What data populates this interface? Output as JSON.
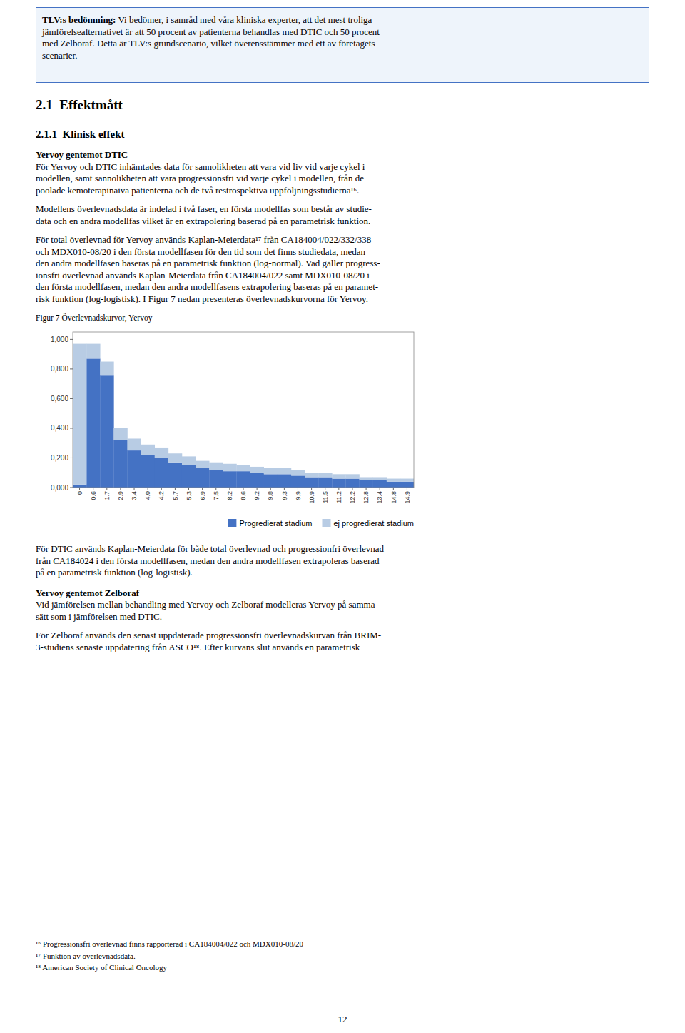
{
  "chart_data": {
    "type": "area",
    "title": "Figur 7 Överlevnadskurvor, Yervoy",
    "stacked": true,
    "line_style": "step",
    "legend": "bottom",
    "categories": [
      "0",
      "0.6",
      "1.7",
      "2.9",
      "3.4",
      "4.0",
      "4.2",
      "5.7",
      "5.3",
      "6.9",
      "7.5",
      "8.2",
      "8.6",
      "9.2",
      "9.8",
      "9.3",
      "9.9",
      "10.9",
      "11.5",
      "11.2",
      "12.2",
      "12.8",
      "13.4",
      "14.8",
      "14.9"
    ],
    "series": [
      {
        "name": "Progredierat stadium",
        "color": "#4472C4",
        "values": [
          0.02,
          0.87,
          0.76,
          0.32,
          0.25,
          0.22,
          0.2,
          0.17,
          0.15,
          0.13,
          0.12,
          0.11,
          0.11,
          0.1,
          0.09,
          0.09,
          0.08,
          0.07,
          0.07,
          0.06,
          0.06,
          0.05,
          0.05,
          0.04,
          0.04
        ]
      },
      {
        "name": "ej progredierat stadium",
        "color": "#B8CCE4",
        "values": [
          0.95,
          0.1,
          0.09,
          0.08,
          0.08,
          0.07,
          0.07,
          0.06,
          0.06,
          0.05,
          0.05,
          0.05,
          0.04,
          0.04,
          0.04,
          0.04,
          0.04,
          0.03,
          0.03,
          0.03,
          0.03,
          0.02,
          0.02,
          0.02,
          0.02
        ]
      }
    ],
    "ylim": [
      0,
      1.05
    ],
    "yticks": [
      {
        "value": 0,
        "label": "0,000"
      },
      {
        "value": 0.2,
        "label": "0,200"
      },
      {
        "value": 0.4,
        "label": "0,400"
      },
      {
        "value": 0.6,
        "label": "0,600"
      },
      {
        "value": 0.8,
        "label": "0,800"
      },
      {
        "value": 1.0,
        "label": "1,000"
      }
    ],
    "grid": false
  },
  "page": {
    "box_text_bold": "TLV:s bedömning:",
    "box_text_line1_rest": " Vi bedömer, i samråd med våra kliniska experter, att det mest troliga",
    "box_lines": [
      "jämförelsealternativet är att 50 procent av patienterna behandlas med DTIC och 50 procent",
      "med Zelboraf. Detta är TLV:s grundscenario, vilket överensstämmer med ett av företagets",
      "scenarier."
    ],
    "heading1": "2.1  Effektmått",
    "heading2": "2.1.1  Klinisk effekt",
    "subheading1": "Yervoy gentemot DTIC",
    "para1_lines": [
      "För Yervoy och DTIC inhämtades data för sannolikheten att vara vid liv vid varje cykel i",
      "modellen, samt sannolikheten att vara progressionsfri vid varje cykel i modellen, från de",
      "poolade kemoterapinaiva patienterna och de två restrospektiva uppföljningsstudierna¹⁶."
    ],
    "para2_lines": [
      "Modellens överlevnadsdata är indelad i två faser, en första modellfas som består av studie-",
      "data och en andra modellfas vilket är en extrapolering baserad på en parametrisk funktion."
    ],
    "para3_lines": [
      "För total överlevnad för Yervoy används Kaplan-Meierdata¹⁷ från CA184004/022/332/338",
      "och MDX010-08/20 i den första modellfasen för den tid som det finns studiedata, medan",
      "den andra modellfasen baseras på en parametrisk funktion (log-normal). Vad gäller progress-",
      "ionsfri överlevnad används Kaplan-Meierdata från CA184004/022 samt MDX010-08/20 i",
      "den första modellfasen, medan den andra modellfasens extrapolering baseras på en paramet-",
      "risk funktion (log-logistisk). I Figur 7 nedan presenteras överlevnadskurvorna för Yervoy."
    ],
    "para4_lines": [
      "För DTIC används Kaplan-Meierdata för både total överlevnad och progressionfri överlevnad",
      "från CA184024 i den första modellfasen, medan den andra modellfasen extrapoleras baserad",
      "på en parametrisk funktion (log-logistisk)."
    ],
    "subheading2": "Yervoy gentemot Zelboraf",
    "para5_lines": [
      "Vid jämförelsen mellan behandling med Yervoy och Zelboraf modelleras Yervoy på samma",
      "sätt som i jämförelsen med DTIC."
    ],
    "para6_lines": [
      "För Zelboraf används den senast uppdaterade progressionsfri överlevnadskurvan från BRIM-",
      "3-studiens senaste uppdatering från ASCO¹⁸. Efter kurvans slut används en parametrisk"
    ],
    "footnotes": [
      "¹⁶ Progressionsfri överlevnad finns rapporterad i CA184004/022 och MDX010-08/20",
      "¹⁷ Funktion av överlevnadsdata.",
      "¹⁸ American Society of Clinical Oncology"
    ],
    "page_number": "12"
  }
}
